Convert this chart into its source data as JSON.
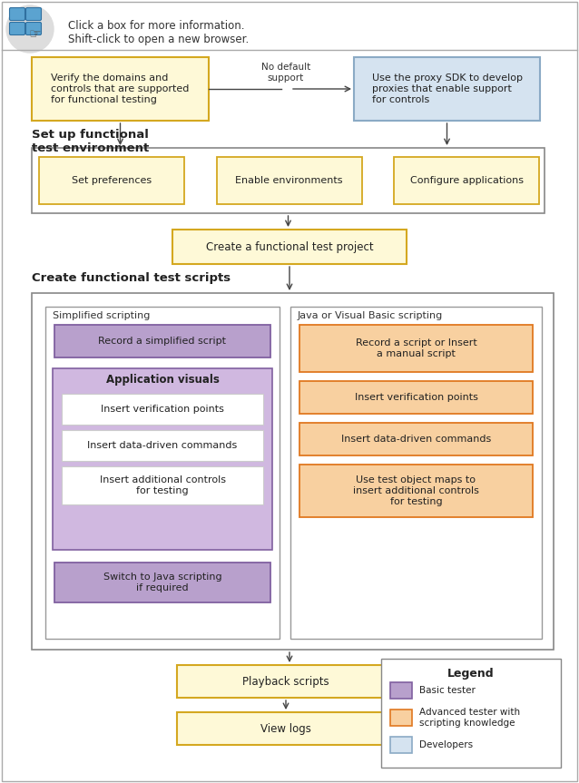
{
  "colors": {
    "yellow_fill": "#FEF9D7",
    "yellow_border": "#D4A820",
    "blue_fill": "#D5E3F0",
    "blue_border": "#8BAAC5",
    "purple_fill": "#B8A0CC",
    "purple_border": "#8060A0",
    "purple_light": "#D0B8E0",
    "orange_fill": "#F8D0A0",
    "orange_border": "#E07820",
    "white_fill": "#FFFFFF",
    "arrow_color": "#444444",
    "border_light": "#AAAAAA",
    "border_dark": "#888888",
    "text_dark": "#222222",
    "text_mid": "#333333"
  },
  "title_text": "Click a box for more information.\nShift-click to open a new browser.",
  "box1_text": "Verify the domains and\ncontrols that are supported\nfor functional testing",
  "box2_text": "Use the proxy SDK to develop\nproxies that enable support\nfor controls",
  "no_default_text": "No default\nsupport",
  "section1_label": "Set up functional\ntest environment",
  "box_set_prefs": "Set preferences",
  "box_enable_env": "Enable environments",
  "box_config_app": "Configure applications",
  "box_create_proj": "Create a functional test project",
  "section2_label": "Create functional test scripts",
  "simp_label": "Simplified scripting",
  "java_label": "Java or Visual Basic scripting",
  "box_record_simp": "Record a simplified script",
  "box_app_visuals": "Application visuals",
  "box_insert_vp1": "Insert verification points",
  "box_insert_ddc1": "Insert data-driven commands",
  "box_insert_ctrl1": "Insert additional controls\nfor testing",
  "box_switch": "Switch to Java scripting\nif required",
  "box_record_java": "Record a script or Insert\na manual script",
  "box_insert_vp2": "Insert verification points",
  "box_insert_ddc2": "Insert data-driven commands",
  "box_insert_ctrl2": "Use test object maps to\ninsert additional controls\nfor testing",
  "box_playback": "Playback scripts",
  "box_viewlogs": "View logs",
  "legend_title": "Legend",
  "legend_basic": "Basic tester",
  "legend_advanced": "Advanced tester with\nscripting knowledge",
  "legend_dev": "Developers"
}
